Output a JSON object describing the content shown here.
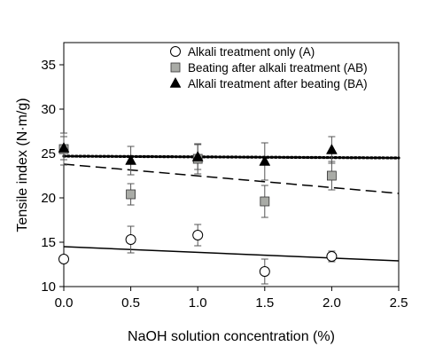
{
  "chart_data": {
    "type": "scatter",
    "title": "",
    "xlabel": "NaOH solution concentration (%)",
    "ylabel": "Tensile index (N·m/g)",
    "xlim": [
      0.0,
      2.5
    ],
    "ylim": [
      10,
      37.5
    ],
    "xticks": [
      0.0,
      0.5,
      1.0,
      1.5,
      2.0,
      2.5
    ],
    "xtick_labels": [
      "0.0",
      "0.5",
      "1.0",
      "1.5",
      "2.0",
      "2.5"
    ],
    "yticks": [
      10,
      15,
      20,
      25,
      30,
      35
    ],
    "ytick_labels": [
      "10",
      "15",
      "20",
      "25",
      "30",
      "35"
    ],
    "grid": false,
    "legend_position": "top-right",
    "series": [
      {
        "name": "Alkali treatment only (A)",
        "marker": "circle-open",
        "color": "#000000",
        "fill": "#ffffff",
        "x": [
          0.0,
          0.5,
          1.0,
          1.5,
          2.0
        ],
        "y": [
          13.1,
          15.3,
          15.8,
          11.7,
          13.4
        ],
        "err": [
          0.0,
          1.5,
          1.2,
          1.4,
          0.6
        ],
        "trend": {
          "style": "solid",
          "y_start": 14.5,
          "y_end": 12.9
        }
      },
      {
        "name": "Beating after alkali treatment (AB)",
        "marker": "square-filled",
        "color": "#000000",
        "fill": "#a9aba6",
        "x": [
          0.0,
          0.5,
          1.0,
          1.5,
          2.0
        ],
        "y": [
          25.5,
          20.4,
          24.4,
          19.6,
          22.5
        ],
        "err": [
          1.8,
          1.2,
          1.7,
          1.8,
          1.6
        ],
        "trend": {
          "style": "dashed",
          "y_start": 23.8,
          "y_end": 20.5
        }
      },
      {
        "name": "Alkali treatment after beating (BA)",
        "marker": "triangle-filled",
        "color": "#000000",
        "fill": "#000000",
        "x": [
          0.0,
          0.5,
          1.0,
          1.5,
          2.0
        ],
        "y": [
          25.6,
          24.2,
          24.6,
          24.1,
          25.4
        ],
        "err": [
          1.3,
          1.6,
          1.4,
          2.1,
          1.5
        ],
        "trend": {
          "style": "dotted",
          "y_start": 24.7,
          "y_end": 24.5
        }
      }
    ]
  }
}
